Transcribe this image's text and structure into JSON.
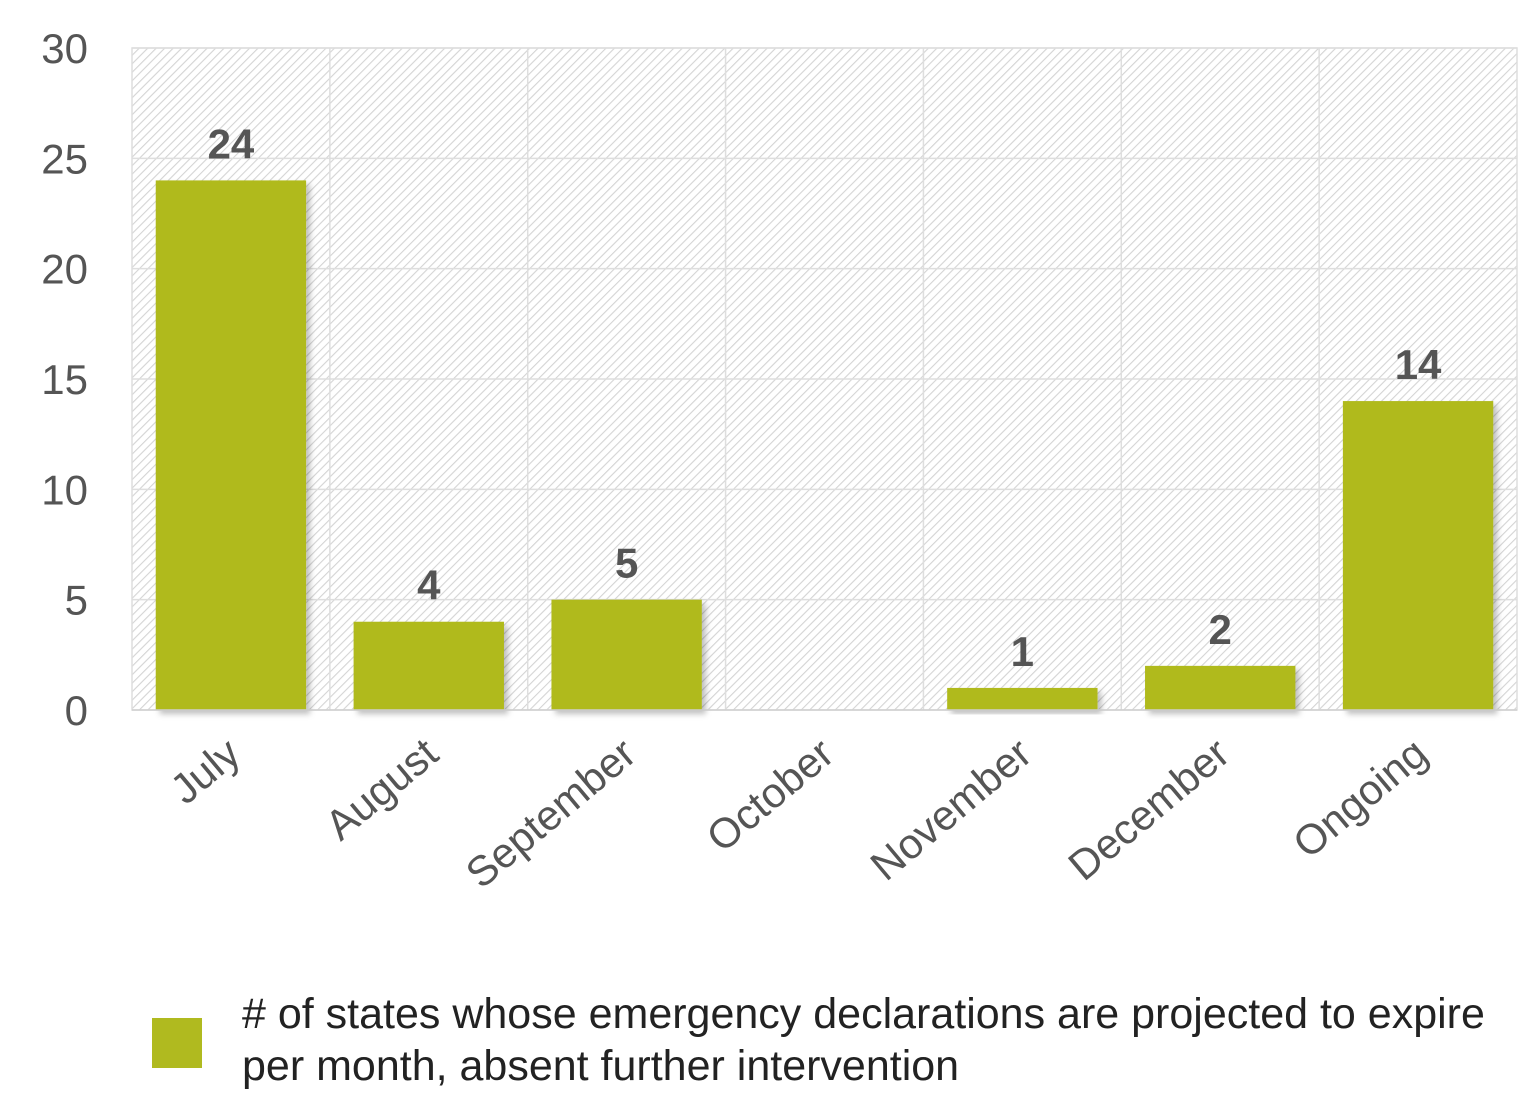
{
  "chart_data": {
    "type": "bar",
    "title": "",
    "xlabel": "",
    "ylabel": "",
    "categories": [
      "July",
      "August",
      "September",
      "October",
      "November",
      "December",
      "Ongoing"
    ],
    "series": [
      {
        "name": "# of states whose emergency declarations are projected to expire per month, absent further intervention",
        "values": [
          24,
          4,
          5,
          0,
          1,
          2,
          14
        ],
        "data_labels": [
          "24",
          "4",
          "5",
          "",
          "1",
          "2",
          "14"
        ]
      }
    ],
    "ylim": [
      0,
      30
    ],
    "yticks": [
      0,
      5,
      10,
      15,
      20,
      25,
      30
    ],
    "grid": true,
    "legend": "bottom"
  },
  "colors": {
    "bar": "#b0ba1f",
    "axis_text": "#555555",
    "value_label": "#555555",
    "grid": "#dedede",
    "plot_hatch": "#d4d4d4"
  }
}
